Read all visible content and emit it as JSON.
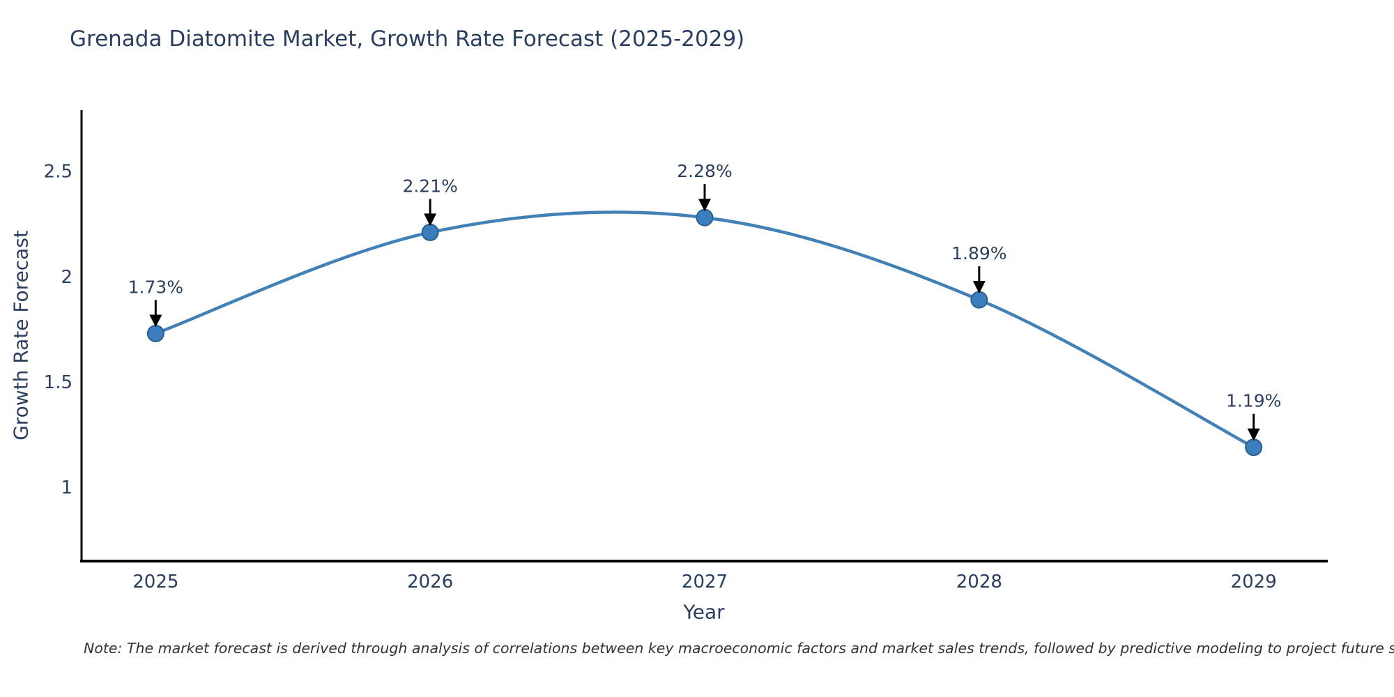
{
  "page": {
    "background": "#ffffff"
  },
  "chart_data": {
    "type": "line",
    "title": "Grenada Diatomite Market, Growth Rate Forecast (2025-2029)",
    "xlabel": "Year",
    "ylabel": "Growth Rate Forecast",
    "x": [
      2025,
      2026,
      2027,
      2028,
      2029
    ],
    "values": [
      1.73,
      2.21,
      2.28,
      1.89,
      1.19
    ],
    "point_labels": [
      "1.73%",
      "2.21%",
      "2.28%",
      "1.89%",
      "1.19%"
    ],
    "x_tick_labels": [
      "2025",
      "2026",
      "2027",
      "2028",
      "2029"
    ],
    "y_ticks": [
      1,
      1.5,
      2,
      2.5
    ],
    "y_tick_labels": [
      "1",
      "1.5",
      "2",
      "2.5"
    ],
    "xlim": [
      2024.73,
      2029.27
    ],
    "ylim": [
      0.65,
      2.79
    ],
    "grid": false,
    "legend_position": "none",
    "line_shape": "spline",
    "annotation_style": "arrow-down-to-point",
    "colors": {
      "line": "#4181b7",
      "marker_fill": "#3a7ebd",
      "marker_edge": "#2b5f8e",
      "axis_line": "#000000",
      "text": "#2a3f5f",
      "annotation_arrow": "#000000"
    }
  },
  "note": {
    "text": "Note: The market forecast is derived through analysis of correlations between key macroeconomic factors and market sales trends, followed by predictive modeling to project future sales"
  }
}
